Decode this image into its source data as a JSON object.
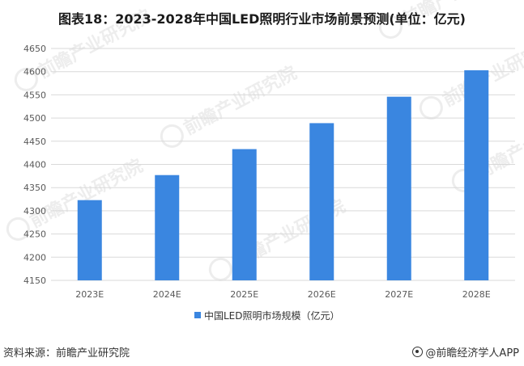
{
  "header": {
    "title": "图表18：2023-2028年中国LED照明行业市场前景预测(单位：亿元)"
  },
  "footer": {
    "source": "资料来源：前瞻产业研究院",
    "brand": "@前瞻经济学人APP",
    "brand_icon": "qianzhan-logo-icon"
  },
  "watermark": {
    "text": "前瞻产业研究院"
  },
  "colors": {
    "bar": "#3a86e0",
    "grid": "#d9d9d9",
    "axis_text": "#595959"
  },
  "chart_data": {
    "type": "bar",
    "categories": [
      "2023E",
      "2024E",
      "2025E",
      "2026E",
      "2027E",
      "2028E"
    ],
    "series": [
      {
        "name": "中国LED照明市场规模（亿元）",
        "values": [
          4323,
          4377,
          4433,
          4489,
          4546,
          4603
        ]
      }
    ],
    "ylim": [
      4150,
      4650
    ],
    "yticks": [
      4150,
      4200,
      4250,
      4300,
      4350,
      4400,
      4450,
      4500,
      4550,
      4600,
      4650
    ],
    "grid": true,
    "legend": "bottom-center"
  }
}
